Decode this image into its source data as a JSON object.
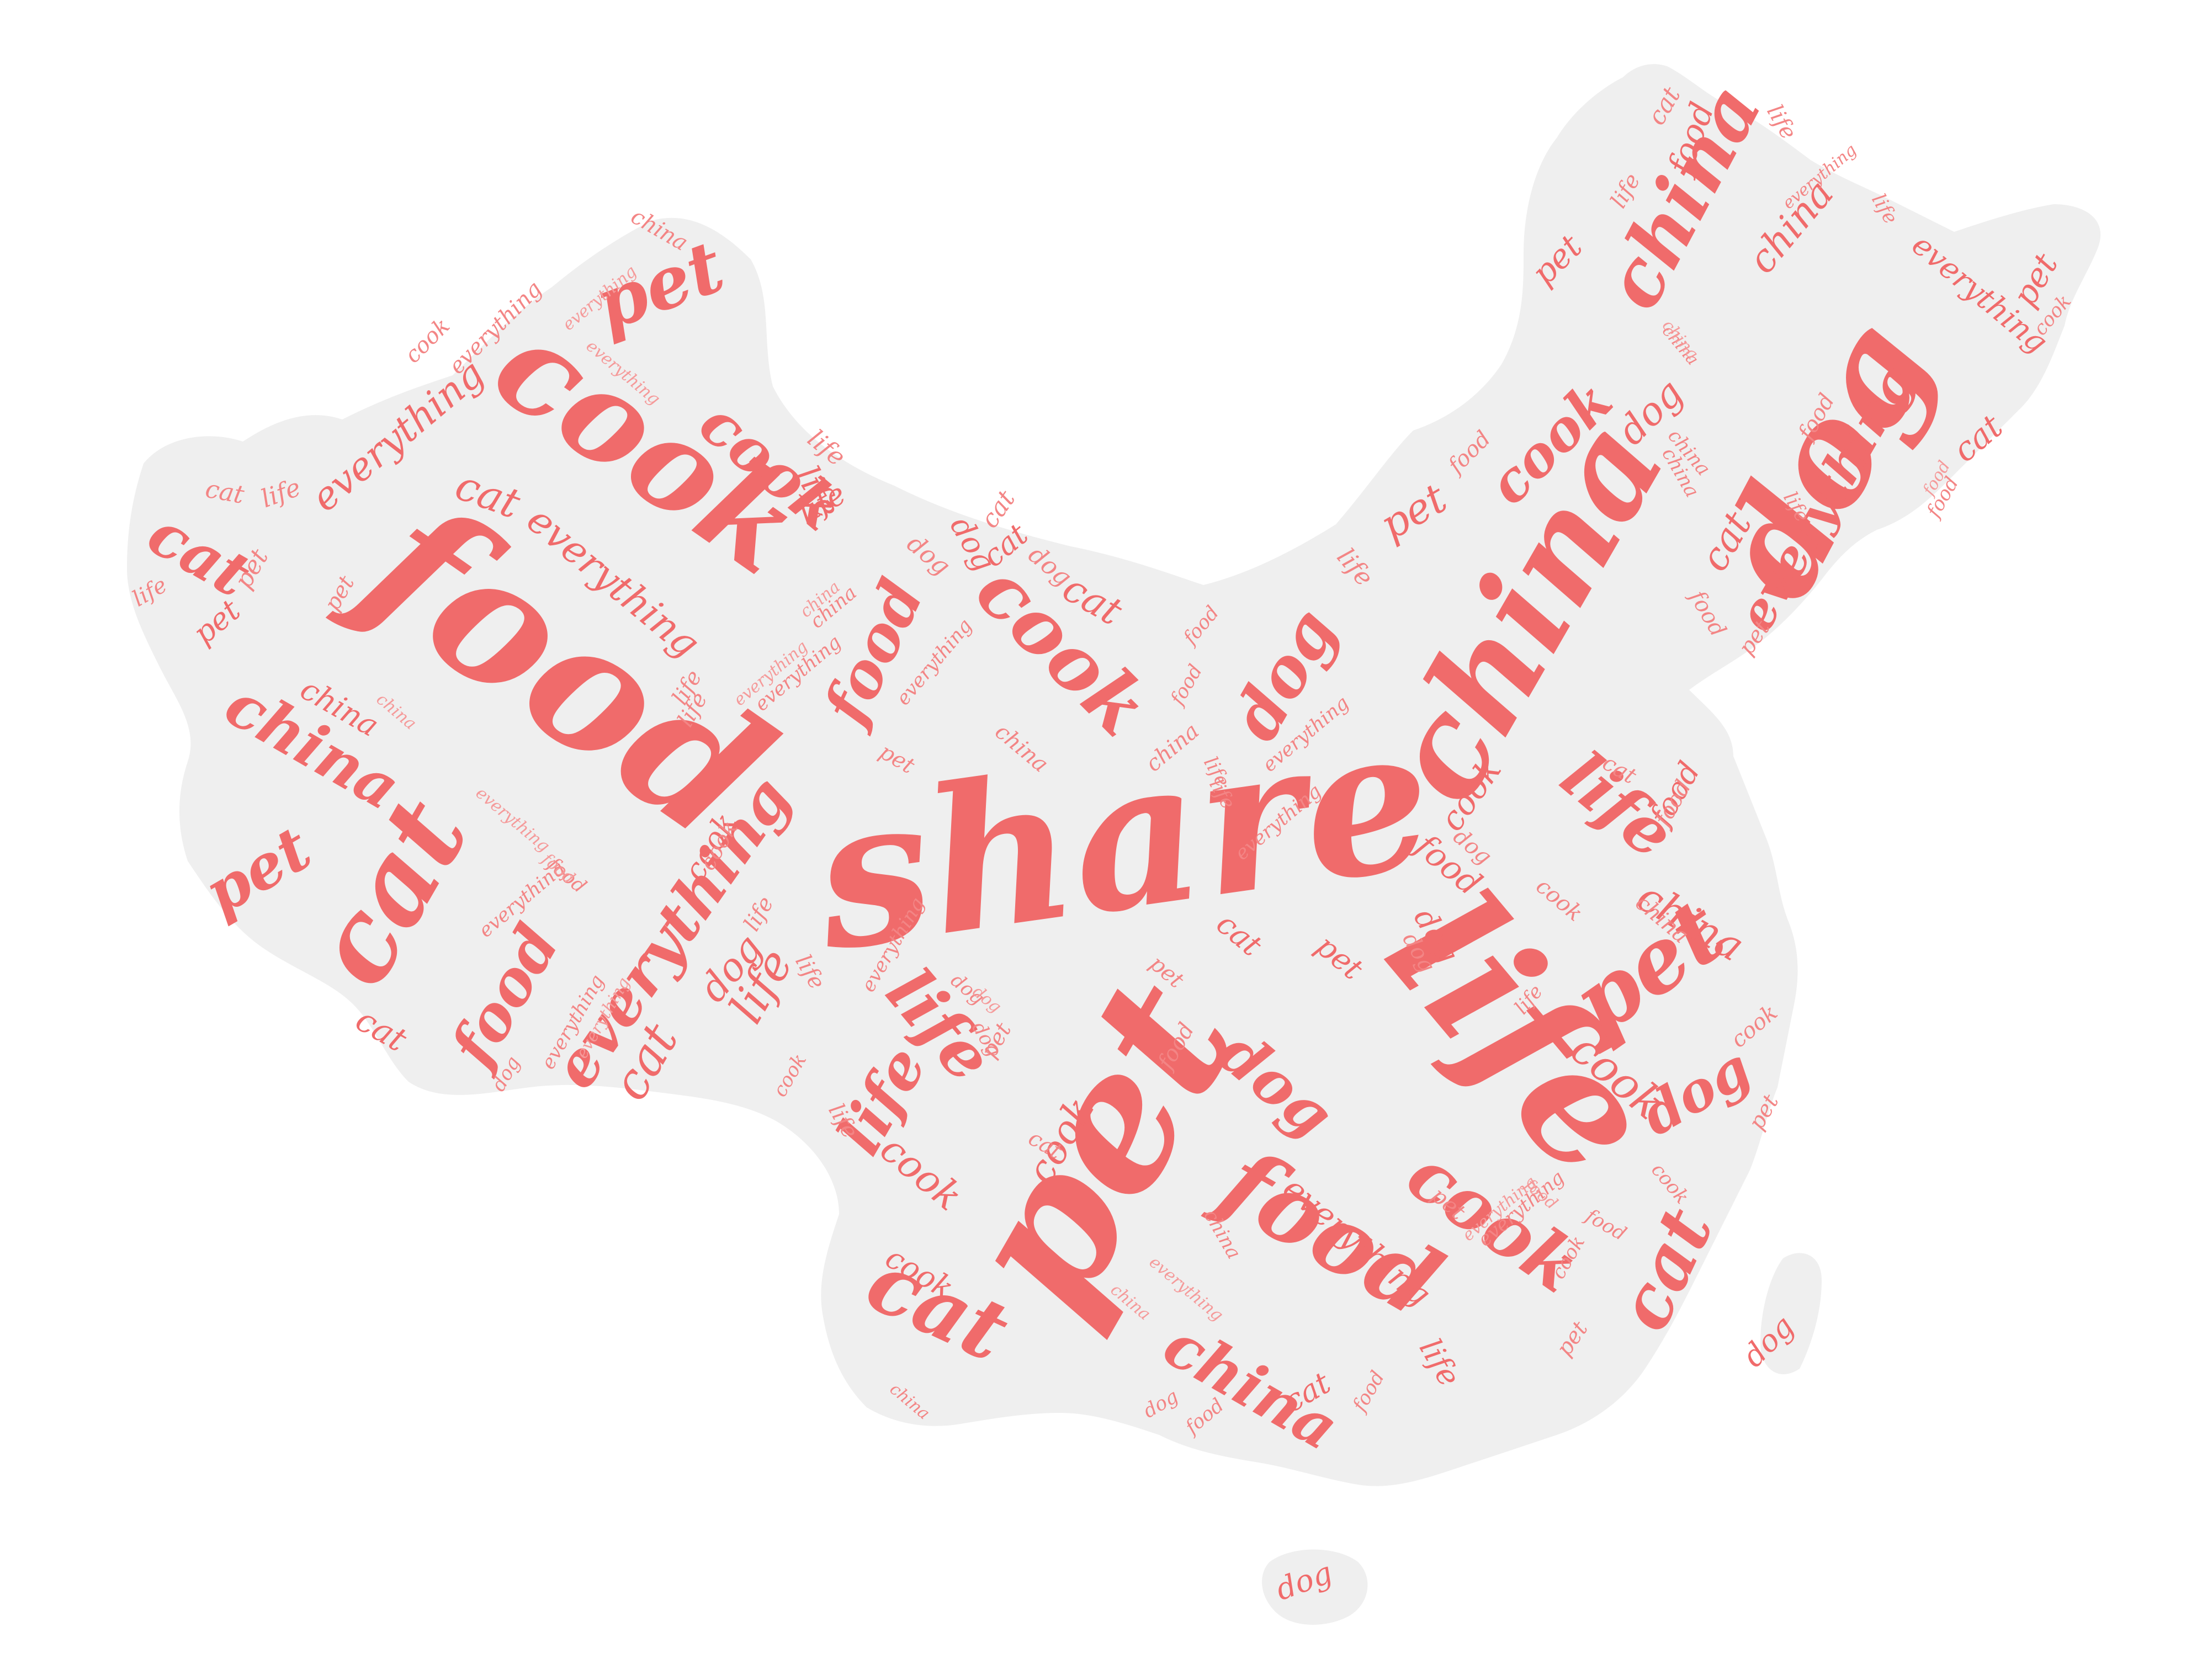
{
  "word_cloud": {
    "colors": {
      "background": "#ffffff",
      "map_fill": "#efefef",
      "word_primary": "#f06b6b",
      "word_secondary": "#f38585",
      "word_tertiary": "#f59a9a"
    },
    "words": {
      "share": "share",
      "china": "china",
      "dog": "dog",
      "pet": "pet",
      "life": "life",
      "food": "food",
      "cook": "cook",
      "cat": "cat",
      "everything": "everything"
    }
  }
}
